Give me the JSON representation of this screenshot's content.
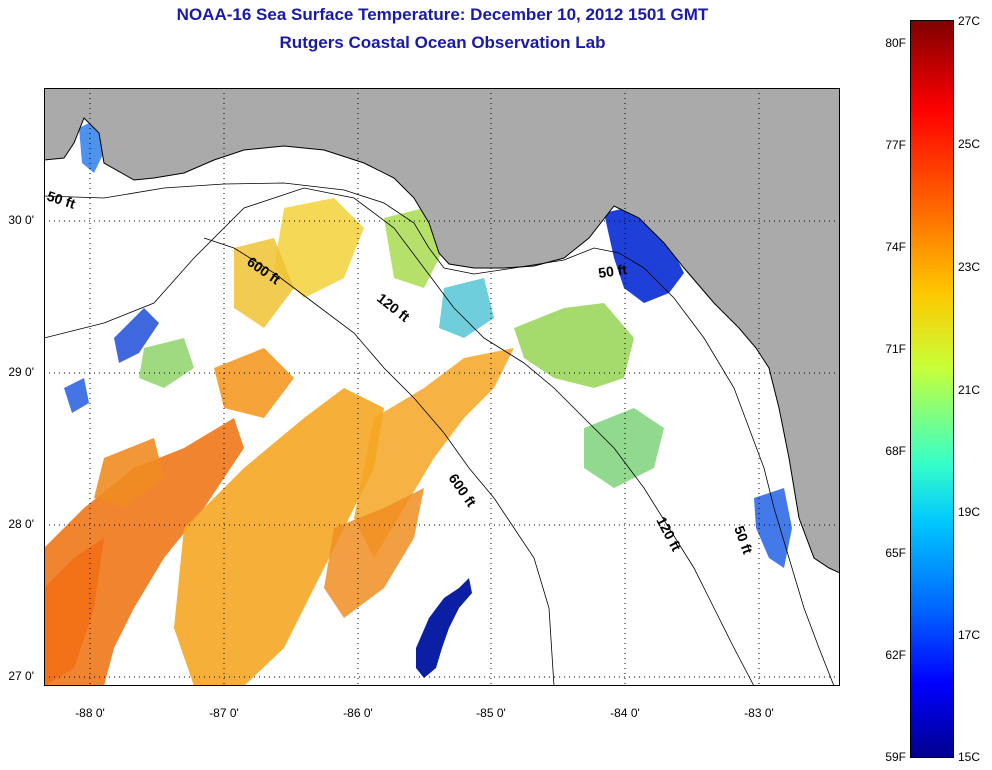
{
  "title": {
    "line1": "NOAA-16 Sea Surface Temperature:  December 10, 2012 1501 GMT",
    "line2": "Rutgers Coastal Ocean Observation Lab"
  },
  "colors": {
    "title": "#1a1aa6",
    "land": "#aaaaaa",
    "cloud": "#ffffff",
    "coastline": "#000000"
  },
  "map": {
    "lat_ticks": [
      "30 0'",
      "29 0'",
      "28 0'",
      "27 0'"
    ],
    "lon_ticks": [
      "-88 0'",
      "-87 0'",
      "-86 0'",
      "-85 0'",
      "-84 0'",
      "-83 0'"
    ],
    "isobaths": [
      {
        "label": "50 ft",
        "placements": [
          "west",
          "big-bend",
          "southeast"
        ]
      },
      {
        "label": "120 ft",
        "placements": [
          "central",
          "south"
        ]
      },
      {
        "label": "600 ft",
        "placements": [
          "north",
          "south"
        ]
      }
    ]
  },
  "colorbar": {
    "fahrenheit": [
      "80F",
      "77F",
      "74F",
      "71F",
      "68F",
      "65F",
      "62F",
      "59F"
    ],
    "celsius": [
      "27C",
      "25C",
      "23C",
      "21C",
      "19C",
      "17C",
      "15C"
    ],
    "range_c": [
      15,
      27
    ]
  }
}
